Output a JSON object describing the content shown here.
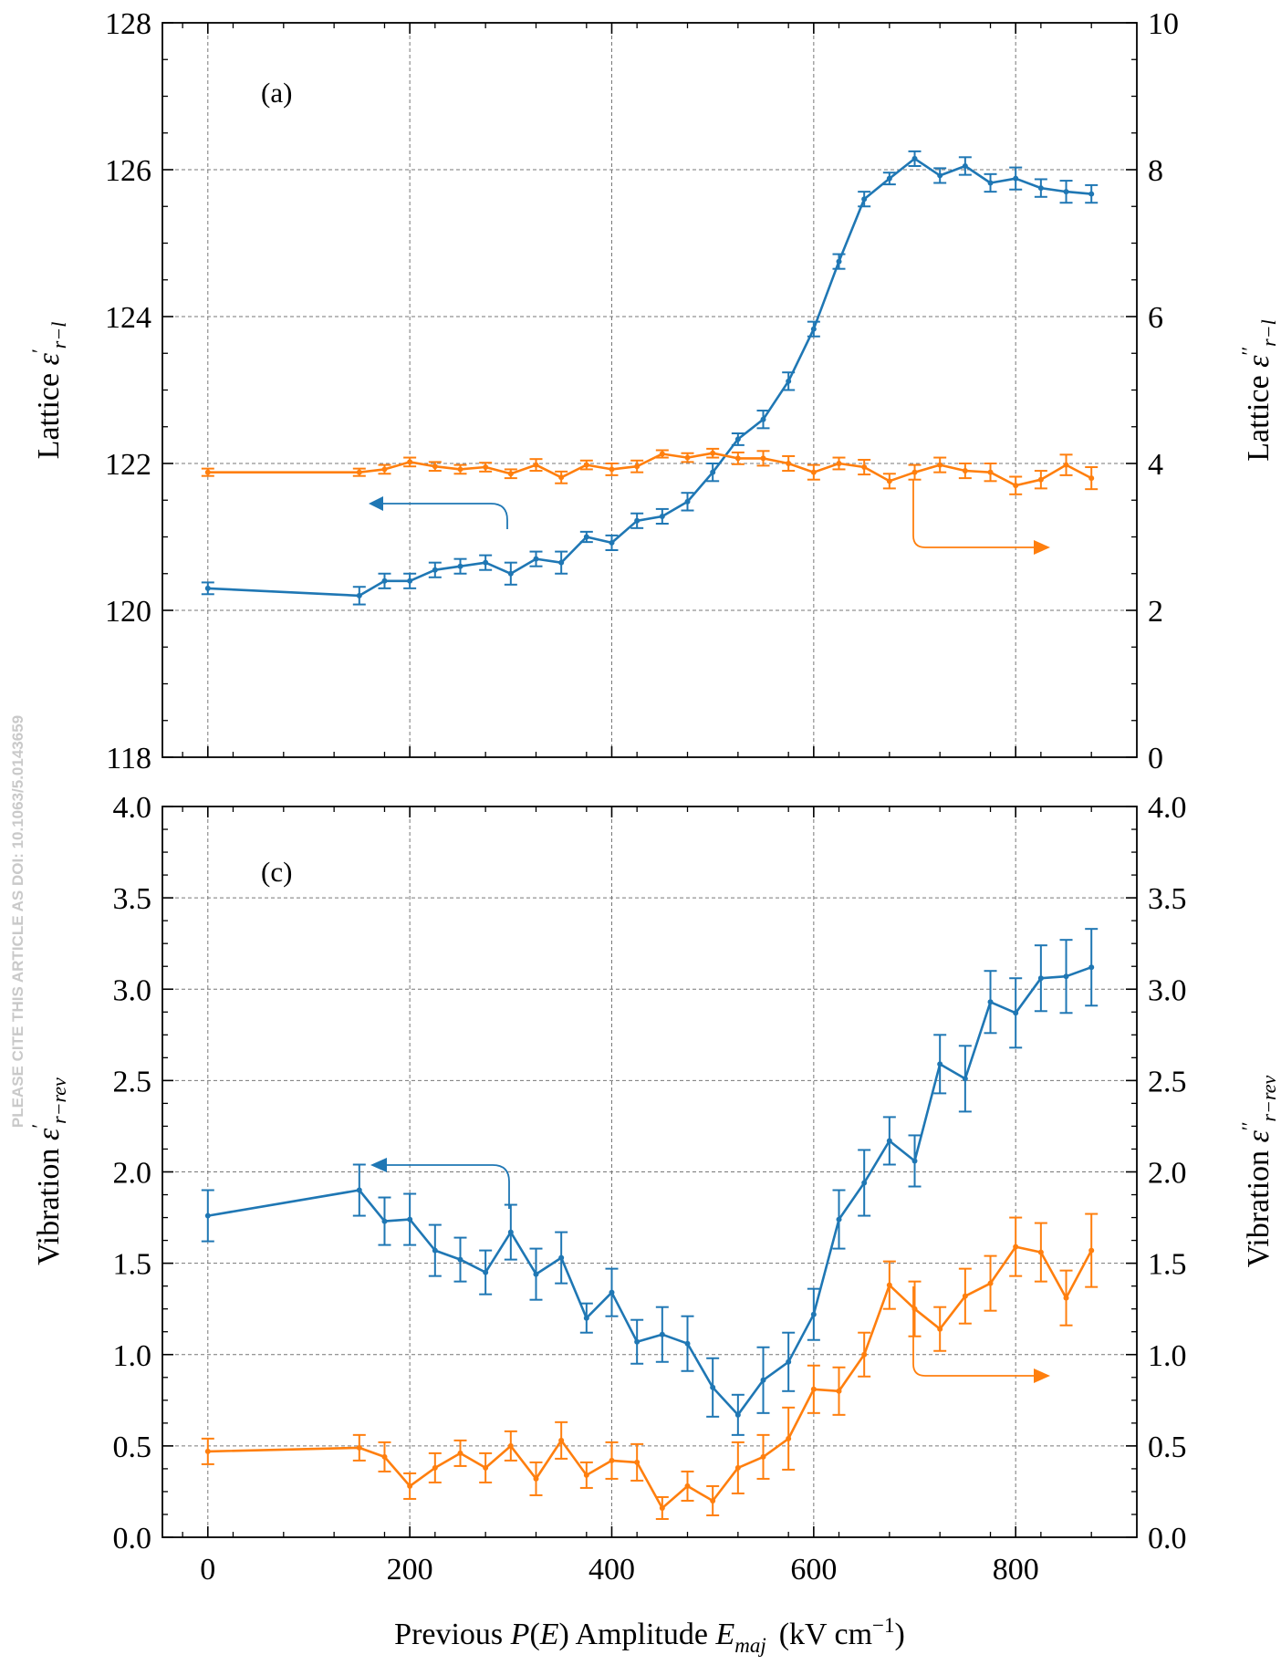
{
  "side_note": "PLEASE CITE THIS ARTICLE AS DOI: 10.1063/5.0143659",
  "colors": {
    "blue": "#1f77b4",
    "orange": "#ff7f0e",
    "grid": "#777777"
  },
  "xaxis": {
    "label_prefix": "Previous ",
    "label_P": "P",
    "label_open": "(",
    "label_E": "E",
    "label_close": ")",
    "label_mid": " Amplitude ",
    "label_Emaj": "E",
    "label_Emaj_sub": "maj",
    "label_unit": "(kV cm",
    "label_unit_sup": "−1",
    "label_unit_end": ")",
    "ticks": [
      "0",
      "200",
      "400",
      "600",
      "800"
    ]
  },
  "chart_data": [
    {
      "type": "line",
      "panel_label": "(a)",
      "grid": true,
      "x": [
        0,
        150,
        175,
        200,
        225,
        250,
        275,
        300,
        325,
        350,
        375,
        400,
        425,
        450,
        475,
        500,
        525,
        550,
        575,
        600,
        625,
        650,
        675,
        700,
        725,
        750,
        775,
        800,
        825,
        850,
        875
      ],
      "xlim": [
        -45,
        920
      ],
      "ylim_left": [
        118,
        128
      ],
      "ylim_right": [
        0,
        10
      ],
      "left_ticks": [
        "118",
        "120",
        "122",
        "124",
        "126",
        "128"
      ],
      "right_ticks": [
        "0",
        "2",
        "4",
        "6",
        "8",
        "10"
      ],
      "ylabel_left": {
        "word": "Lattice",
        "sym": "ε",
        "sup": "′",
        "sub": "r−l"
      },
      "ylabel_right": {
        "word": "Lattice",
        "sym": "ε",
        "sup": "′′",
        "sub": "r−l"
      },
      "series": [
        {
          "axis": "left",
          "color": "#1f77b4",
          "values": [
            120.3,
            120.2,
            120.4,
            120.4,
            120.55,
            120.6,
            120.65,
            120.5,
            120.7,
            120.65,
            121.0,
            120.92,
            121.22,
            121.28,
            121.48,
            121.88,
            122.33,
            122.6,
            123.12,
            123.83,
            124.75,
            125.6,
            125.88,
            126.15,
            125.92,
            126.05,
            125.82,
            125.88,
            125.75,
            125.7,
            125.67
          ],
          "errors": [
            0.08,
            0.12,
            0.1,
            0.1,
            0.1,
            0.1,
            0.1,
            0.15,
            0.1,
            0.15,
            0.07,
            0.1,
            0.1,
            0.1,
            0.12,
            0.12,
            0.08,
            0.12,
            0.12,
            0.1,
            0.1,
            0.1,
            0.08,
            0.1,
            0.1,
            0.12,
            0.12,
            0.15,
            0.12,
            0.15,
            0.12
          ]
        },
        {
          "axis": "right",
          "color": "#ff7f0e",
          "values": [
            3.88,
            3.88,
            3.92,
            4.02,
            3.96,
            3.92,
            3.95,
            3.86,
            3.98,
            3.81,
            3.98,
            3.92,
            3.96,
            4.13,
            4.08,
            4.14,
            4.07,
            4.07,
            4.0,
            3.88,
            4.0,
            3.95,
            3.76,
            3.88,
            3.98,
            3.9,
            3.88,
            3.7,
            3.78,
            3.98,
            3.8
          ]
        }
      ],
      "orange_errors": [
        0.05,
        0.05,
        0.06,
        0.06,
        0.06,
        0.06,
        0.06,
        0.06,
        0.08,
        0.08,
        0.06,
        0.08,
        0.08,
        0.05,
        0.06,
        0.06,
        0.08,
        0.1,
        0.1,
        0.1,
        0.08,
        0.1,
        0.1,
        0.1,
        0.1,
        0.1,
        0.12,
        0.12,
        0.12,
        0.14,
        0.15
      ]
    },
    {
      "type": "line",
      "panel_label": "(c)",
      "grid": true,
      "x": [
        0,
        150,
        175,
        200,
        225,
        250,
        275,
        300,
        325,
        350,
        375,
        400,
        425,
        450,
        475,
        500,
        525,
        550,
        575,
        600,
        625,
        650,
        675,
        700,
        725,
        750,
        775,
        800,
        825,
        850,
        875
      ],
      "xlim": [
        -45,
        920
      ],
      "ylim_left": [
        0.0,
        4.0
      ],
      "ylim_right": [
        0.0,
        4.0
      ],
      "left_ticks": [
        "0.0",
        "0.5",
        "1.0",
        "1.5",
        "2.0",
        "2.5",
        "3.0",
        "3.5",
        "4.0"
      ],
      "right_ticks": [
        "0.0",
        "0.5",
        "1.0",
        "1.5",
        "2.0",
        "2.5",
        "3.0",
        "3.5",
        "4.0"
      ],
      "ylabel_left": {
        "word": "Vibration",
        "sym": "ε",
        "sup": "′",
        "sub": "r−rev"
      },
      "ylabel_right": {
        "word": "Vibration",
        "sym": "ε",
        "sup": "′′",
        "sub": "r−rev"
      },
      "series": [
        {
          "axis": "left",
          "color": "#1f77b4",
          "values": [
            1.76,
            1.9,
            1.73,
            1.74,
            1.57,
            1.52,
            1.45,
            1.67,
            1.44,
            1.53,
            1.2,
            1.34,
            1.07,
            1.11,
            1.06,
            0.82,
            0.67,
            0.86,
            0.96,
            1.22,
            1.74,
            1.94,
            2.17,
            2.06,
            2.59,
            2.51,
            2.93,
            2.87,
            3.06,
            3.07,
            3.12
          ]
        },
        {
          "axis": "right",
          "color": "#ff7f0e",
          "values": [
            0.47,
            0.49,
            0.44,
            0.28,
            0.38,
            0.46,
            0.38,
            0.5,
            0.32,
            0.53,
            0.34,
            0.42,
            0.41,
            0.16,
            0.28,
            0.2,
            0.38,
            0.44,
            0.54,
            0.81,
            0.8,
            1.0,
            1.38,
            1.25,
            1.14,
            1.32,
            1.39,
            1.59,
            1.56,
            1.31,
            1.57
          ]
        }
      ],
      "blue_errors": [
        0.14,
        0.14,
        0.13,
        0.14,
        0.14,
        0.12,
        0.12,
        0.15,
        0.14,
        0.14,
        0.08,
        0.13,
        0.12,
        0.15,
        0.15,
        0.16,
        0.11,
        0.18,
        0.16,
        0.14,
        0.16,
        0.18,
        0.13,
        0.14,
        0.16,
        0.18,
        0.17,
        0.19,
        0.18,
        0.2,
        0.21
      ],
      "orange_errors": [
        0.07,
        0.07,
        0.08,
        0.07,
        0.08,
        0.07,
        0.08,
        0.08,
        0.09,
        0.1,
        0.07,
        0.1,
        0.1,
        0.06,
        0.08,
        0.08,
        0.14,
        0.12,
        0.17,
        0.13,
        0.13,
        0.12,
        0.13,
        0.15,
        0.12,
        0.15,
        0.15,
        0.16,
        0.16,
        0.15,
        0.2
      ]
    }
  ]
}
